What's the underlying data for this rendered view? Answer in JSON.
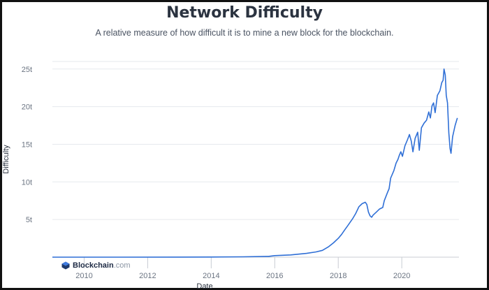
{
  "chart_data": {
    "type": "line",
    "title": "Network Difficulty",
    "subtitle": "A relative measure of how difficult it is to mine a new block for the blockchain.",
    "xlabel": "Date",
    "ylabel": "Difficulty",
    "x_ticks": [
      "2010",
      "2012",
      "2014",
      "2016",
      "2018",
      "2020"
    ],
    "y_ticks": [
      "5t",
      "10t",
      "15t",
      "20t",
      "25t"
    ],
    "y_tick_values": [
      5,
      10,
      15,
      20,
      25
    ],
    "xlim": [
      2009.0,
      2021.8
    ],
    "ylim": [
      0,
      26
    ],
    "grid": true,
    "line_color": "#2f6fd6",
    "series": [
      {
        "name": "",
        "unit": "trillion",
        "points": [
          [
            2009.0,
            0
          ],
          [
            2011.0,
            0
          ],
          [
            2013.0,
            0.01
          ],
          [
            2014.0,
            0.02
          ],
          [
            2015.0,
            0.05
          ],
          [
            2015.8,
            0.1
          ],
          [
            2016.0,
            0.2
          ],
          [
            2016.5,
            0.3
          ],
          [
            2017.0,
            0.5
          ],
          [
            2017.3,
            0.7
          ],
          [
            2017.5,
            0.9
          ],
          [
            2017.7,
            1.4
          ],
          [
            2017.85,
            1.9
          ],
          [
            2018.0,
            2.5
          ],
          [
            2018.1,
            3.0
          ],
          [
            2018.2,
            3.6
          ],
          [
            2018.3,
            4.2
          ],
          [
            2018.45,
            5.1
          ],
          [
            2018.55,
            5.8
          ],
          [
            2018.65,
            6.7
          ],
          [
            2018.75,
            7.1
          ],
          [
            2018.85,
            7.3
          ],
          [
            2018.9,
            7.0
          ],
          [
            2018.95,
            6.0
          ],
          [
            2019.0,
            5.5
          ],
          [
            2019.05,
            5.3
          ],
          [
            2019.1,
            5.6
          ],
          [
            2019.2,
            6.0
          ],
          [
            2019.3,
            6.4
          ],
          [
            2019.4,
            6.6
          ],
          [
            2019.45,
            7.5
          ],
          [
            2019.55,
            8.6
          ],
          [
            2019.6,
            9.1
          ],
          [
            2019.65,
            10.5
          ],
          [
            2019.75,
            11.5
          ],
          [
            2019.82,
            12.5
          ],
          [
            2019.88,
            13.0
          ],
          [
            2019.92,
            13.5
          ],
          [
            2019.97,
            14.0
          ],
          [
            2020.02,
            13.4
          ],
          [
            2020.1,
            14.8
          ],
          [
            2020.18,
            15.6
          ],
          [
            2020.24,
            16.3
          ],
          [
            2020.3,
            15.4
          ],
          [
            2020.35,
            14.0
          ],
          [
            2020.42,
            15.8
          ],
          [
            2020.5,
            16.6
          ],
          [
            2020.55,
            14.2
          ],
          [
            2020.62,
            17.2
          ],
          [
            2020.7,
            17.8
          ],
          [
            2020.78,
            18.2
          ],
          [
            2020.85,
            19.3
          ],
          [
            2020.9,
            18.5
          ],
          [
            2020.95,
            20.1
          ],
          [
            2021.0,
            20.5
          ],
          [
            2021.05,
            19.2
          ],
          [
            2021.12,
            21.5
          ],
          [
            2021.2,
            22.1
          ],
          [
            2021.26,
            23.2
          ],
          [
            2021.3,
            23.5
          ],
          [
            2021.33,
            25.0
          ],
          [
            2021.37,
            24.2
          ],
          [
            2021.4,
            21.5
          ],
          [
            2021.44,
            20.5
          ],
          [
            2021.48,
            16.5
          ],
          [
            2021.52,
            14.4
          ],
          [
            2021.55,
            13.8
          ],
          [
            2021.6,
            16.0
          ],
          [
            2021.68,
            17.5
          ],
          [
            2021.75,
            18.5
          ]
        ]
      }
    ]
  },
  "branding": {
    "logo_name": "Blockchain",
    "logo_domain": ".com"
  }
}
